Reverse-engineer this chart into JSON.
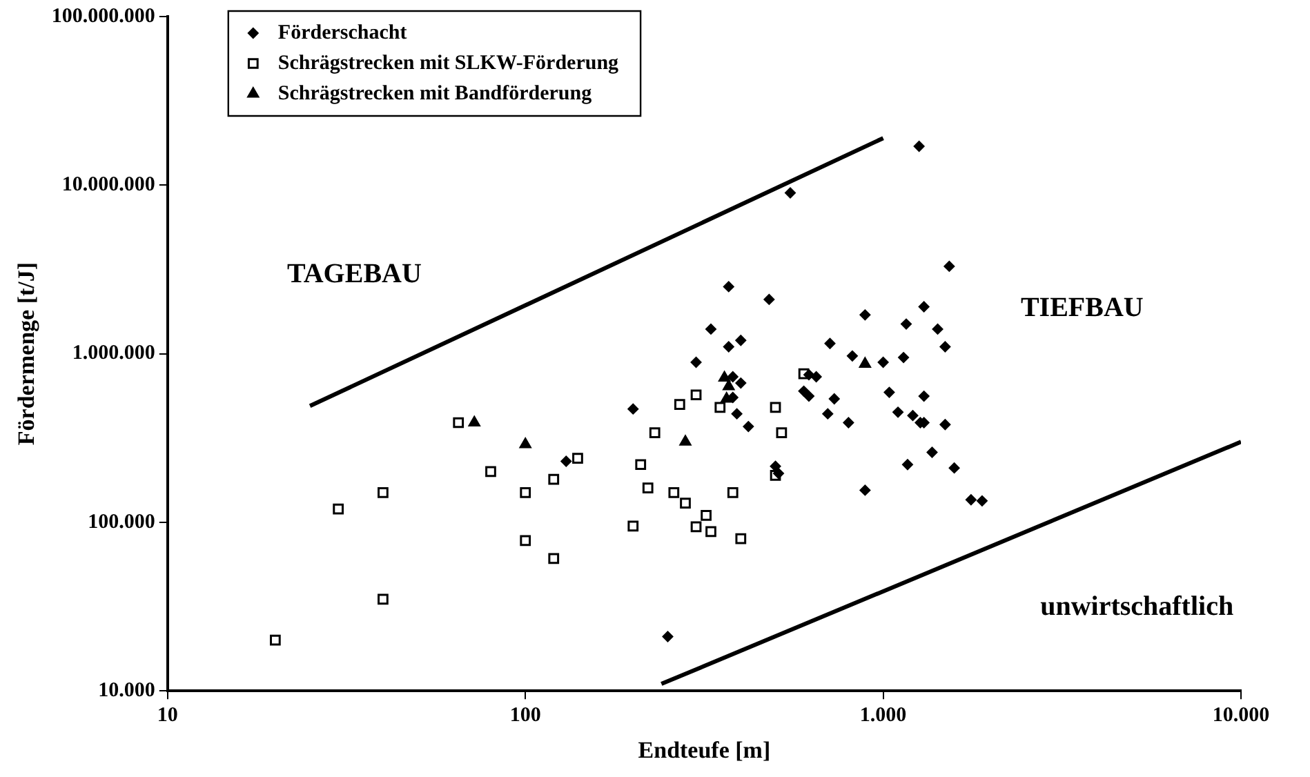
{
  "chart_data": {
    "type": "scatter",
    "xlabel": "Endteufe [m]",
    "ylabel": "Fördermenge [t/J]",
    "log": "xy",
    "grid": false,
    "legend": "top left",
    "xlim": [
      10,
      10000
    ],
    "xticks": [
      10,
      100,
      {
        "value": 1000,
        "label": "1.000"
      },
      {
        "value": 10000,
        "label": "10.000"
      }
    ],
    "ylim": [
      10000,
      100000000
    ],
    "yticks": [
      {
        "value": 10000,
        "label": "10.000"
      },
      {
        "value": 100000,
        "label": "100.000"
      },
      {
        "value": 1000000,
        "label": "1.000.000"
      },
      {
        "value": 10000000,
        "label": "10.000.000"
      },
      {
        "value": 100000000,
        "label": "100.000.000"
      }
    ],
    "annotations": [
      "TAGEBAU",
      "TIEFBAU",
      "unwirtschaftlich"
    ],
    "series": [
      {
        "name": "Förderschacht",
        "color": "#000000",
        "marker": "diamond",
        "x": [
          1260,
          550,
          1530,
          370,
          480,
          890,
          1300,
          330,
          1160,
          1420,
          400,
          370,
          1490,
          710,
          300,
          820,
          1000,
          1140,
          380,
          400,
          620,
          650,
          600,
          620,
          730,
          1040,
          1300,
          380,
          390,
          700,
          1100,
          1210,
          1270,
          1300,
          1490,
          800,
          420,
          200,
          130,
          1370,
          500,
          510,
          1170,
          1580,
          890,
          1760,
          1890,
          250
        ],
        "values": [
          17000000,
          9000000,
          3300000,
          2500000,
          2100000,
          1700000,
          1900000,
          1400000,
          1500000,
          1400000,
          1200000,
          1100000,
          1100000,
          1150000,
          890000,
          970000,
          890000,
          950000,
          730000,
          670000,
          750000,
          730000,
          600000,
          560000,
          540000,
          590000,
          560000,
          550000,
          440000,
          440000,
          450000,
          430000,
          390000,
          390000,
          380000,
          390000,
          370000,
          470000,
          230000,
          260000,
          215000,
          195000,
          220000,
          210000,
          155000,
          136000,
          134000,
          21000
        ]
      },
      {
        "name": "Schrägstrecken mit SLKW-Förderung",
        "color": "#000000",
        "marker": "square",
        "x": [
          20,
          30,
          40,
          40,
          65,
          80,
          100,
          100,
          120,
          120,
          140,
          200,
          210,
          220,
          230,
          260,
          270,
          280,
          300,
          300,
          320,
          330,
          350,
          380,
          400,
          500,
          520,
          500,
          600
        ],
        "values": [
          20000,
          120000,
          150000,
          35000,
          390000,
          200000,
          150000,
          78000,
          180000,
          61000,
          240000,
          95000,
          220000,
          160000,
          340000,
          150000,
          500000,
          130000,
          570000,
          94000,
          110000,
          88000,
          480000,
          150000,
          80000,
          480000,
          340000,
          190000,
          760000
        ]
      },
      {
        "name": "Schrägstrecken mit Bandförderung",
        "color": "#000000",
        "marker": "triangle",
        "x": [
          72,
          100,
          280,
          360,
          370,
          365,
          890
        ],
        "values": [
          390000,
          290000,
          300000,
          720000,
          640000,
          540000,
          870000
        ]
      },
      {
        "type": "line",
        "color": "#000000",
        "marker": "none",
        "x": [
          25,
          1000
        ],
        "values": [
          490000,
          19000000
        ]
      },
      {
        "type": "line",
        "color": "#000000",
        "marker": "none",
        "x": [
          240,
          10000
        ],
        "values": [
          11000,
          300000
        ]
      }
    ]
  }
}
